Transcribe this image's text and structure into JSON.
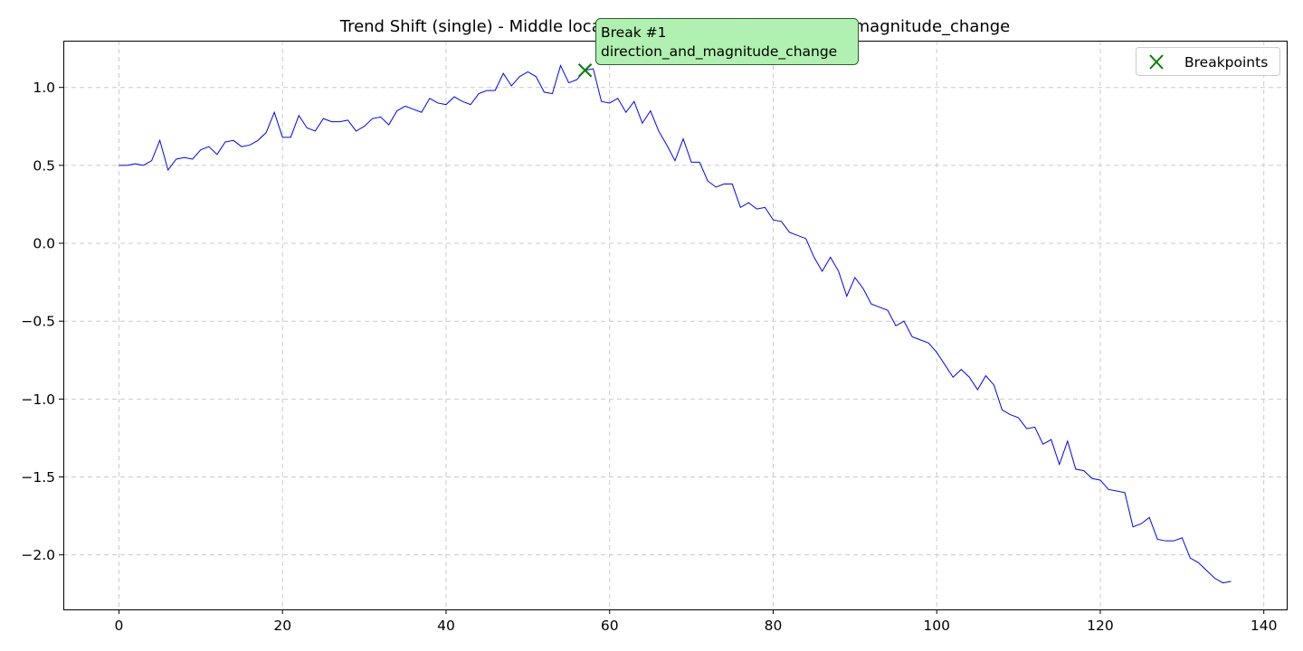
{
  "chart_data": {
    "type": "line",
    "title": "Trend Shift (single) - Middle location - 1 events - direction_and_magnitude_change",
    "xlabel": "",
    "ylabel": "",
    "xlim": [
      -6.8,
      142.8
    ],
    "ylim": [
      -2.35,
      1.3
    ],
    "x_ticks": [
      0,
      20,
      40,
      60,
      80,
      100,
      120,
      140
    ],
    "x_tick_labels": [
      "0",
      "20",
      "40",
      "60",
      "80",
      "100",
      "120",
      "140"
    ],
    "y_ticks": [
      1.0,
      0.5,
      0.0,
      -0.5,
      -1.0,
      -1.5,
      -2.0
    ],
    "y_tick_labels": [
      "1.0",
      "0.5",
      "0.0",
      "−0.5",
      "−1.0",
      "−1.5",
      "−2.0"
    ],
    "grid": true,
    "legend_position": "upper right",
    "colors": {
      "line": "#0000ff",
      "marker": "#008000",
      "annotation_fill": "#b0f0b0",
      "annotation_edge": "#2e5e2e",
      "grid": "#cccccc"
    },
    "series": [
      {
        "x": [
          0,
          1,
          2,
          3,
          4,
          5,
          6,
          7,
          8,
          9,
          10,
          11,
          12,
          13,
          14,
          15,
          16,
          17,
          18,
          19,
          20,
          21,
          22,
          23,
          24,
          25,
          26,
          27,
          28,
          29,
          30,
          31,
          32,
          33,
          34,
          35,
          36,
          37,
          38,
          39,
          40,
          41,
          42,
          43,
          44,
          45,
          46,
          47,
          48,
          49,
          50,
          51,
          52,
          53,
          54,
          55,
          56,
          57,
          58,
          59,
          60,
          61,
          62,
          63,
          64,
          65,
          66,
          67,
          68,
          69,
          70,
          71,
          72,
          73,
          74,
          75,
          76,
          77,
          78,
          79,
          80,
          81,
          82,
          83,
          84,
          85,
          86,
          87,
          88,
          89,
          90,
          91,
          92,
          93,
          94,
          95,
          96,
          97,
          98,
          99,
          100,
          101,
          102,
          103,
          104,
          105,
          106,
          107,
          108,
          109,
          110,
          111,
          112,
          113,
          114,
          115,
          116,
          117,
          118,
          119,
          120,
          121,
          122,
          123,
          124,
          125,
          126,
          127,
          128,
          129,
          130,
          131,
          132,
          133,
          134,
          135,
          136
        ],
        "values": [
          0.5,
          0.5,
          0.51,
          0.5,
          0.53,
          0.66,
          0.47,
          0.54,
          0.55,
          0.54,
          0.6,
          0.62,
          0.57,
          0.65,
          0.66,
          0.62,
          0.63,
          0.66,
          0.71,
          0.84,
          0.68,
          0.68,
          0.82,
          0.74,
          0.72,
          0.8,
          0.78,
          0.78,
          0.79,
          0.72,
          0.75,
          0.8,
          0.81,
          0.76,
          0.85,
          0.88,
          0.86,
          0.84,
          0.93,
          0.9,
          0.89,
          0.94,
          0.91,
          0.89,
          0.96,
          0.98,
          0.98,
          1.09,
          1.01,
          1.07,
          1.1,
          1.07,
          0.97,
          0.96,
          1.14,
          1.03,
          1.05,
          1.11,
          1.12,
          0.91,
          0.9,
          0.93,
          0.84,
          0.91,
          0.77,
          0.85,
          0.72,
          0.63,
          0.53,
          0.67,
          0.52,
          0.52,
          0.4,
          0.36,
          0.38,
          0.38,
          0.23,
          0.26,
          0.22,
          0.23,
          0.15,
          0.14,
          0.07,
          0.05,
          0.03,
          -0.09,
          -0.18,
          -0.09,
          -0.18,
          -0.34,
          -0.22,
          -0.29,
          -0.39,
          -0.41,
          -0.43,
          -0.53,
          -0.5,
          -0.6,
          -0.62,
          -0.64,
          -0.7,
          -0.78,
          -0.86,
          -0.81,
          -0.86,
          -0.94,
          -0.85,
          -0.91,
          -1.07,
          -1.1,
          -1.12,
          -1.19,
          -1.18,
          -1.29,
          -1.26,
          -1.42,
          -1.27,
          -1.45,
          -1.46,
          -1.51,
          -1.52,
          -1.58,
          -1.59,
          -1.6,
          -1.82,
          -1.8,
          -1.76,
          -1.9,
          -1.91,
          -1.91,
          -1.89,
          -2.02,
          -2.05,
          -2.1,
          -2.15,
          -2.18,
          -2.17
        ]
      }
    ],
    "breakpoints": [
      {
        "x": 57,
        "y": 1.11
      }
    ],
    "legend": [
      {
        "label": "Breakpoints"
      }
    ],
    "annotation": {
      "line1": "Break #1",
      "line2": "direction_and_magnitude_change"
    }
  }
}
